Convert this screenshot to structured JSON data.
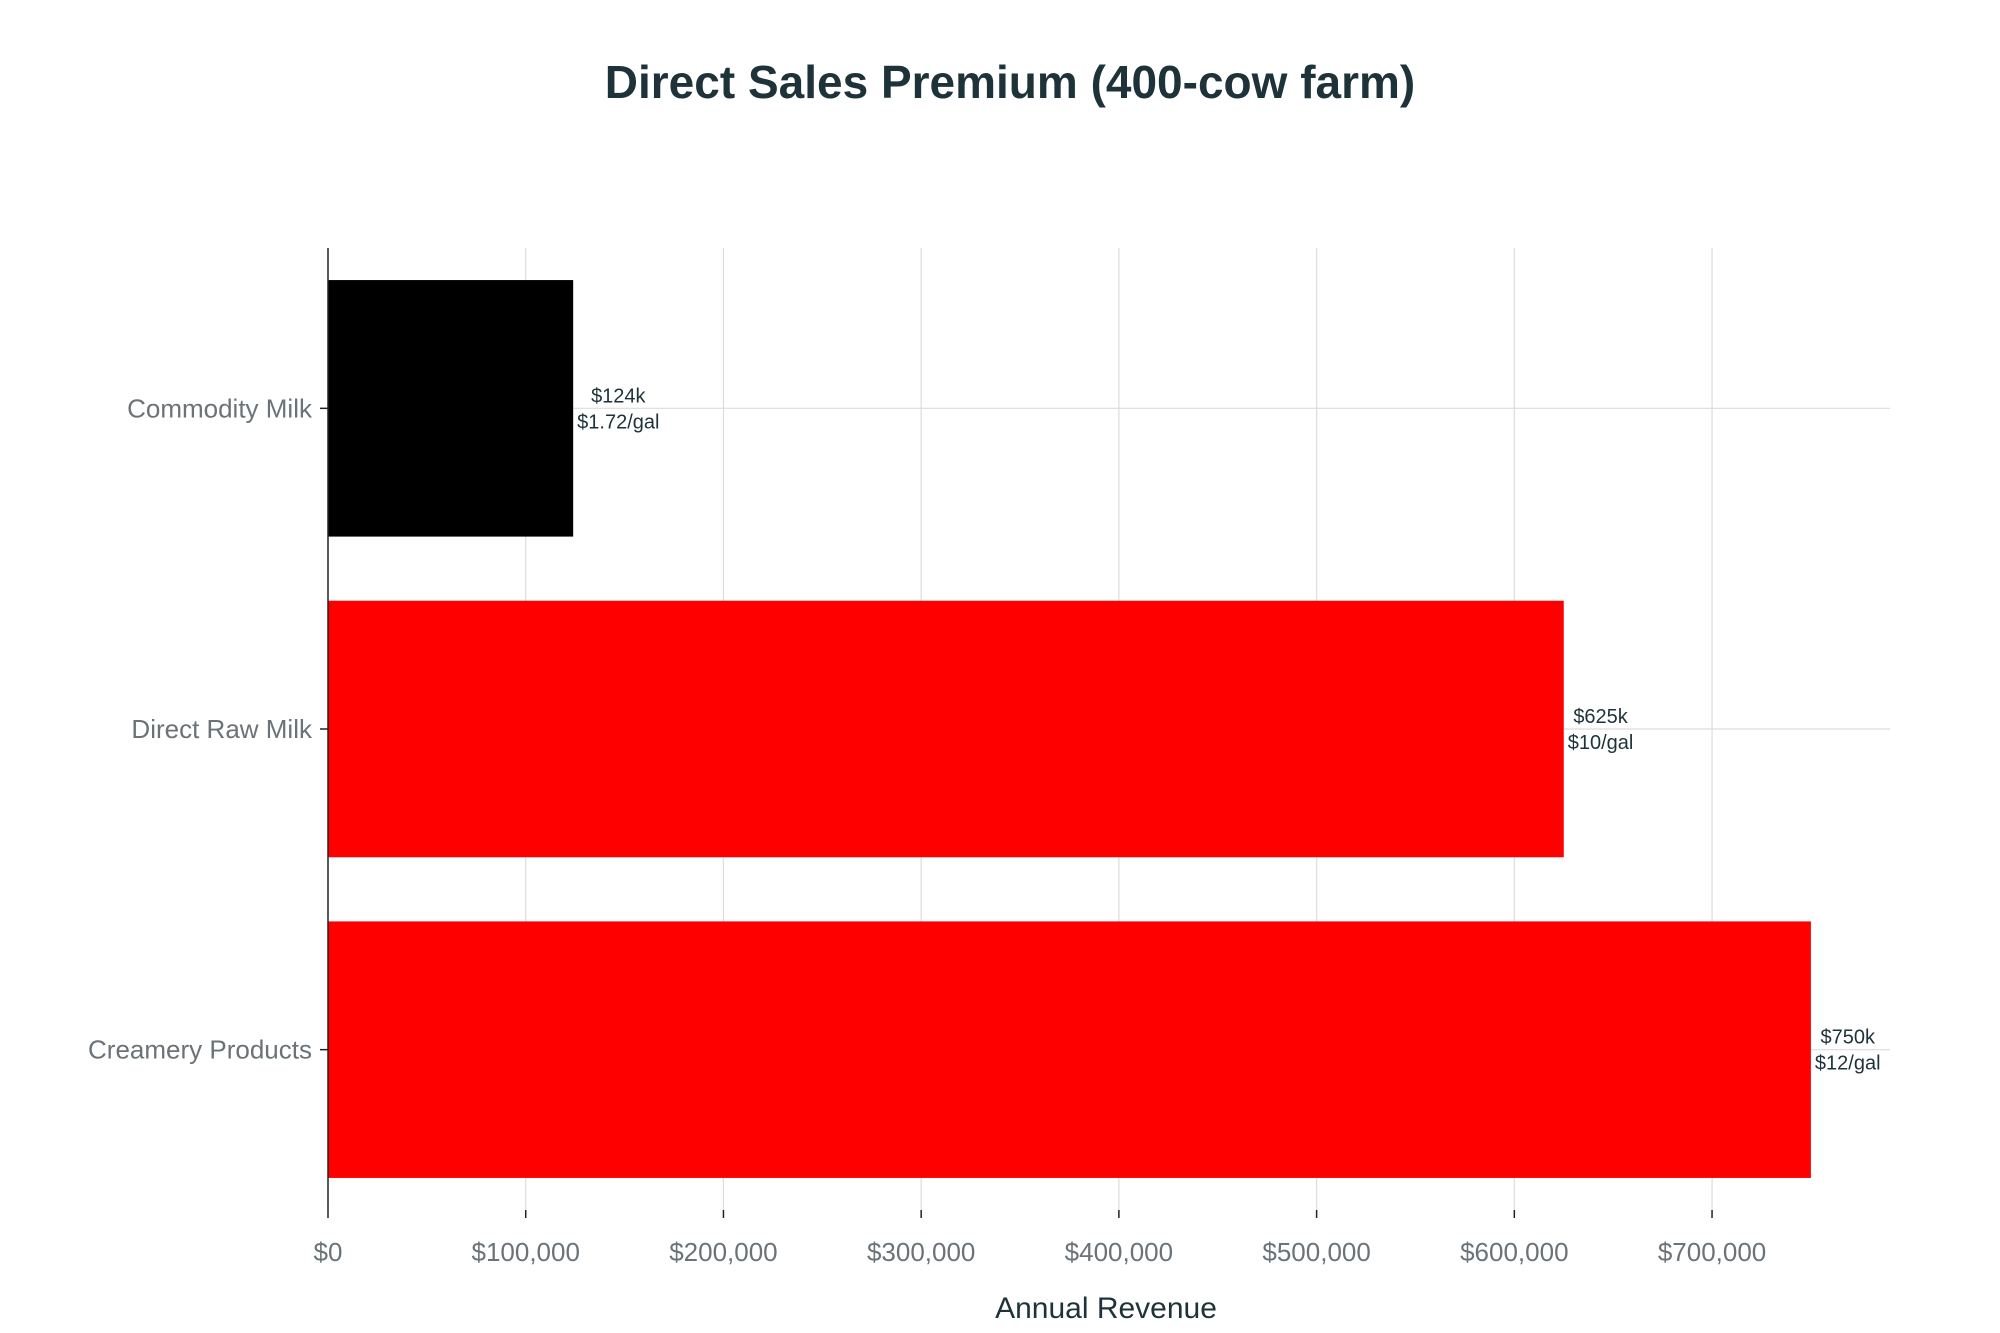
{
  "chart_data": {
    "type": "bar",
    "orientation": "horizontal",
    "title": "Direct Sales Premium (400-cow farm)",
    "xlabel": "Annual Revenue",
    "ylabel": "",
    "categories": [
      "Commodity Milk",
      "Direct Raw Milk",
      "Creamery Products"
    ],
    "values": [
      124000,
      625000,
      750000
    ],
    "bar_colors": [
      "#000000",
      "#ff0000",
      "#ff0000"
    ],
    "data_labels": [
      [
        "$124k",
        "$1.72/gal"
      ],
      [
        "$625k",
        "$10/gal"
      ],
      [
        "$750k",
        "$12/gal"
      ]
    ],
    "xlim": [
      0,
      790000
    ],
    "xticks": [
      0,
      100000,
      200000,
      300000,
      400000,
      500000,
      600000,
      700000
    ],
    "xtick_labels": [
      "$0",
      "$100,000",
      "$200,000",
      "$300,000",
      "$400,000",
      "$500,000",
      "$600,000",
      "$700,000"
    ],
    "grid": true,
    "legend": "none",
    "colors": {
      "title": "#1e3339",
      "tick_text": "#6b7378",
      "grid": "#dcdcdc"
    }
  }
}
